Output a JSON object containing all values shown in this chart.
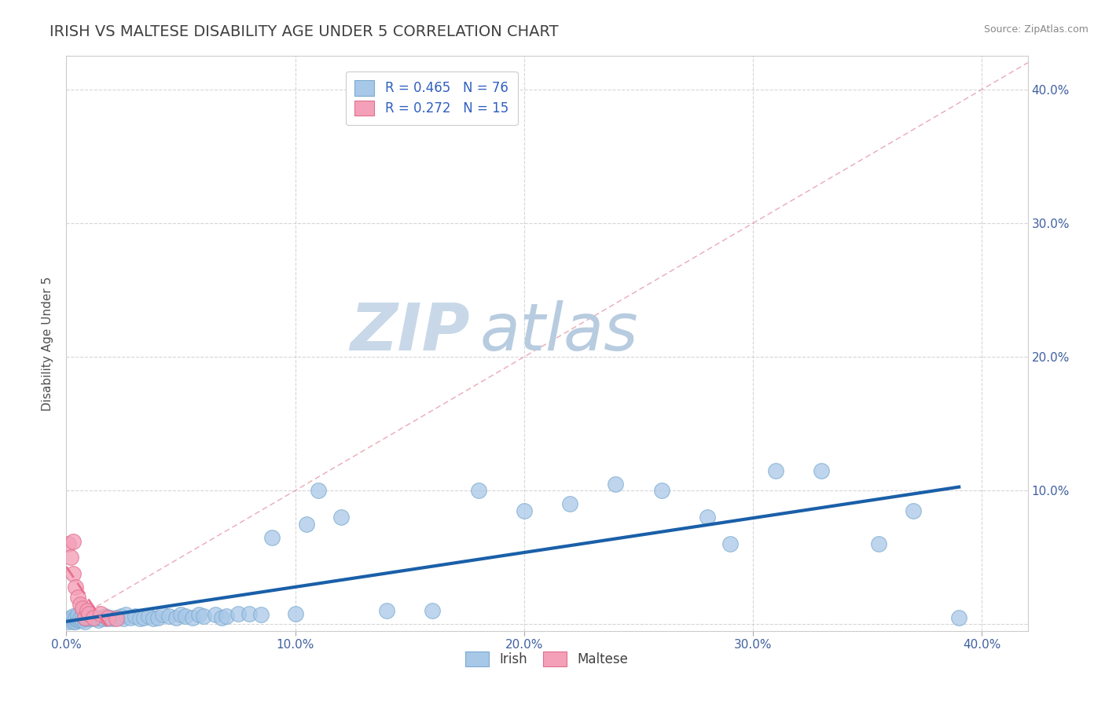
{
  "title": "IRISH VS MALTESE DISABILITY AGE UNDER 5 CORRELATION CHART",
  "source": "Source: ZipAtlas.com",
  "ylabel": "Disability Age Under 5",
  "xlim": [
    0.0,
    0.42
  ],
  "ylim": [
    -0.005,
    0.425
  ],
  "x_ticks": [
    0.0,
    0.1,
    0.2,
    0.3,
    0.4
  ],
  "y_ticks": [
    0.0,
    0.1,
    0.2,
    0.3,
    0.4
  ],
  "x_tick_labels": [
    "0.0%",
    "10.0%",
    "20.0%",
    "30.0%",
    "40.0%"
  ],
  "y_tick_labels": [
    "",
    "10.0%",
    "20.0%",
    "30.0%",
    "40.0%"
  ],
  "irish_color": "#a8c8e8",
  "maltese_color": "#f4a0b8",
  "irish_edge_color": "#7aaad0",
  "maltese_edge_color": "#e07090",
  "irish_line_color": "#1a5fa8",
  "maltese_line_color": "#e87090",
  "diagonal_color": "#e8a0b0",
  "R_irish": 0.465,
  "N_irish": 76,
  "R_maltese": 0.272,
  "N_maltese": 15,
  "legend_label_color": "#3060c0",
  "irish_x": [
    0.001,
    0.002,
    0.002,
    0.003,
    0.003,
    0.003,
    0.004,
    0.004,
    0.004,
    0.005,
    0.005,
    0.005,
    0.006,
    0.006,
    0.007,
    0.007,
    0.008,
    0.008,
    0.008,
    0.009,
    0.01,
    0.01,
    0.011,
    0.012,
    0.013,
    0.014,
    0.015,
    0.016,
    0.017,
    0.018,
    0.019,
    0.02,
    0.022,
    0.024,
    0.025,
    0.026,
    0.028,
    0.03,
    0.032,
    0.034,
    0.036,
    0.038,
    0.04,
    0.042,
    0.045,
    0.048,
    0.05,
    0.052,
    0.055,
    0.058,
    0.06,
    0.065,
    0.068,
    0.07,
    0.075,
    0.08,
    0.085,
    0.09,
    0.1,
    0.105,
    0.11,
    0.12,
    0.14,
    0.16,
    0.18,
    0.2,
    0.22,
    0.24,
    0.26,
    0.28,
    0.29,
    0.31,
    0.33,
    0.355,
    0.37,
    0.39
  ],
  "irish_y": [
    0.002,
    0.003,
    0.005,
    0.002,
    0.004,
    0.006,
    0.002,
    0.004,
    0.005,
    0.003,
    0.005,
    0.007,
    0.003,
    0.005,
    0.003,
    0.006,
    0.002,
    0.004,
    0.006,
    0.005,
    0.004,
    0.006,
    0.004,
    0.005,
    0.004,
    0.003,
    0.005,
    0.004,
    0.006,
    0.004,
    0.005,
    0.004,
    0.005,
    0.006,
    0.004,
    0.007,
    0.005,
    0.006,
    0.004,
    0.005,
    0.006,
    0.004,
    0.005,
    0.007,
    0.006,
    0.005,
    0.007,
    0.006,
    0.005,
    0.007,
    0.006,
    0.007,
    0.005,
    0.006,
    0.008,
    0.008,
    0.007,
    0.065,
    0.008,
    0.075,
    0.1,
    0.08,
    0.01,
    0.01,
    0.1,
    0.085,
    0.09,
    0.105,
    0.1,
    0.08,
    0.06,
    0.115,
    0.115,
    0.06,
    0.085,
    0.005
  ],
  "maltese_x": [
    0.001,
    0.002,
    0.003,
    0.003,
    0.004,
    0.005,
    0.006,
    0.007,
    0.008,
    0.009,
    0.01,
    0.012,
    0.015,
    0.018,
    0.022
  ],
  "maltese_y": [
    0.06,
    0.05,
    0.038,
    0.062,
    0.028,
    0.02,
    0.015,
    0.012,
    0.005,
    0.01,
    0.008,
    0.005,
    0.008,
    0.005,
    0.004
  ],
  "background_color": "#ffffff",
  "title_color": "#404040",
  "title_fontsize": 14,
  "axis_label_fontsize": 11,
  "tick_fontsize": 11,
  "watermark_zip_color": "#c8d8e8",
  "watermark_atlas_color": "#b8cce0"
}
